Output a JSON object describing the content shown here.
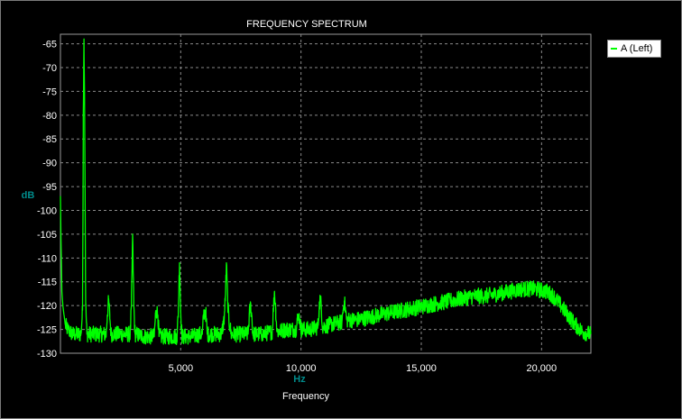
{
  "chart_data": {
    "type": "line",
    "title": "FREQUENCY SPECTRUM",
    "xlabel": "Frequency",
    "xunit": "Hz",
    "ylabel": "dB",
    "xlim": [
      0,
      22050
    ],
    "ylim": [
      -130,
      -63
    ],
    "xticks": [
      5000,
      10000,
      15000,
      20000
    ],
    "xtick_labels": [
      "5,000",
      "10,000",
      "15,000",
      "20,000"
    ],
    "yticks": [
      -65,
      -70,
      -75,
      -80,
      -85,
      -90,
      -95,
      -100,
      -105,
      -110,
      -115,
      -120,
      -125,
      -130
    ],
    "grid": true,
    "legend": "top-right",
    "series": [
      {
        "name": "A (Left)",
        "color": "#00ff00",
        "x": [
          0,
          30,
          60,
          100,
          150,
          200,
          300,
          400,
          500,
          600,
          700,
          850,
          920,
          950,
          980,
          1000,
          1020,
          1050,
          1100,
          1300,
          1600,
          1900,
          1950,
          2000,
          2050,
          2100,
          2500,
          2900,
          2950,
          3000,
          3050,
          3100,
          3500,
          3900,
          3950,
          4000,
          4050,
          4100,
          4500,
          4850,
          4900,
          4950,
          5000,
          5050,
          5100,
          5500,
          5800,
          5900,
          5950,
          6000,
          6050,
          6100,
          6400,
          6700,
          6800,
          6850,
          6900,
          6950,
          7000,
          7100,
          7500,
          7800,
          7850,
          7900,
          7950,
          8000,
          8400,
          8800,
          8850,
          8900,
          8950,
          9000,
          9400,
          9800,
          9850,
          9900,
          9950,
          10000,
          10400,
          10700,
          10750,
          10800,
          10850,
          10900,
          11200,
          11700,
          11750,
          11800,
          11850,
          11900,
          12300,
          12800,
          13200,
          13700,
          14200,
          14700,
          15200,
          15700,
          16200,
          16700,
          17200,
          17700,
          18200,
          18700,
          19200,
          19700,
          20200,
          20500,
          20800,
          21100,
          21400,
          21700,
          22050
        ],
        "y": [
          -97,
          -108,
          -117,
          -120,
          -122,
          -124,
          -125,
          -125.5,
          -126,
          -126,
          -126,
          -126,
          -121,
          -80,
          -64,
          -75,
          -92,
          -120,
          -126,
          -126,
          -126,
          -126,
          -122,
          -119,
          -122,
          -126,
          -126,
          -126,
          -120,
          -105,
          -120,
          -126,
          -126.5,
          -126.5,
          -122,
          -121,
          -122,
          -126.5,
          -126.5,
          -126.5,
          -121,
          -111,
          -121,
          -126.5,
          -126.5,
          -126.5,
          -126,
          -126,
          -122,
          -121,
          -122,
          -126,
          -126,
          -126,
          -123,
          -119,
          -111,
          -119,
          -123,
          -126,
          -126,
          -126,
          -122,
          -120,
          -122,
          -126,
          -126,
          -125.5,
          -121,
          -117,
          -121,
          -125.5,
          -125,
          -125,
          -123,
          -122,
          -123,
          -125,
          -125,
          -124.5,
          -121,
          -118,
          -121,
          -124.5,
          -124,
          -123.5,
          -121,
          -119,
          -121,
          -123,
          -123,
          -122.5,
          -122,
          -121.5,
          -121,
          -120.5,
          -120,
          -119.5,
          -119,
          -118.5,
          -118,
          -118,
          -117.5,
          -117,
          -116.5,
          -116.5,
          -117,
          -118,
          -120,
          -122,
          -124,
          -125.5,
          -126
        ]
      }
    ]
  }
}
